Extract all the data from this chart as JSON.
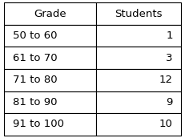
{
  "col_headers": [
    "Grade",
    "Students"
  ],
  "rows": [
    [
      "50 to 60",
      "1"
    ],
    [
      "61 to 70",
      "3"
    ],
    [
      "71 to 80",
      "12"
    ],
    [
      "81 to 90",
      "9"
    ],
    [
      "91 to 100",
      "10"
    ]
  ],
  "background_color": "#ffffff",
  "border_color": "#000000",
  "font_size": 9.5,
  "fig_width": 2.31,
  "fig_height": 1.72,
  "dpi": 100
}
